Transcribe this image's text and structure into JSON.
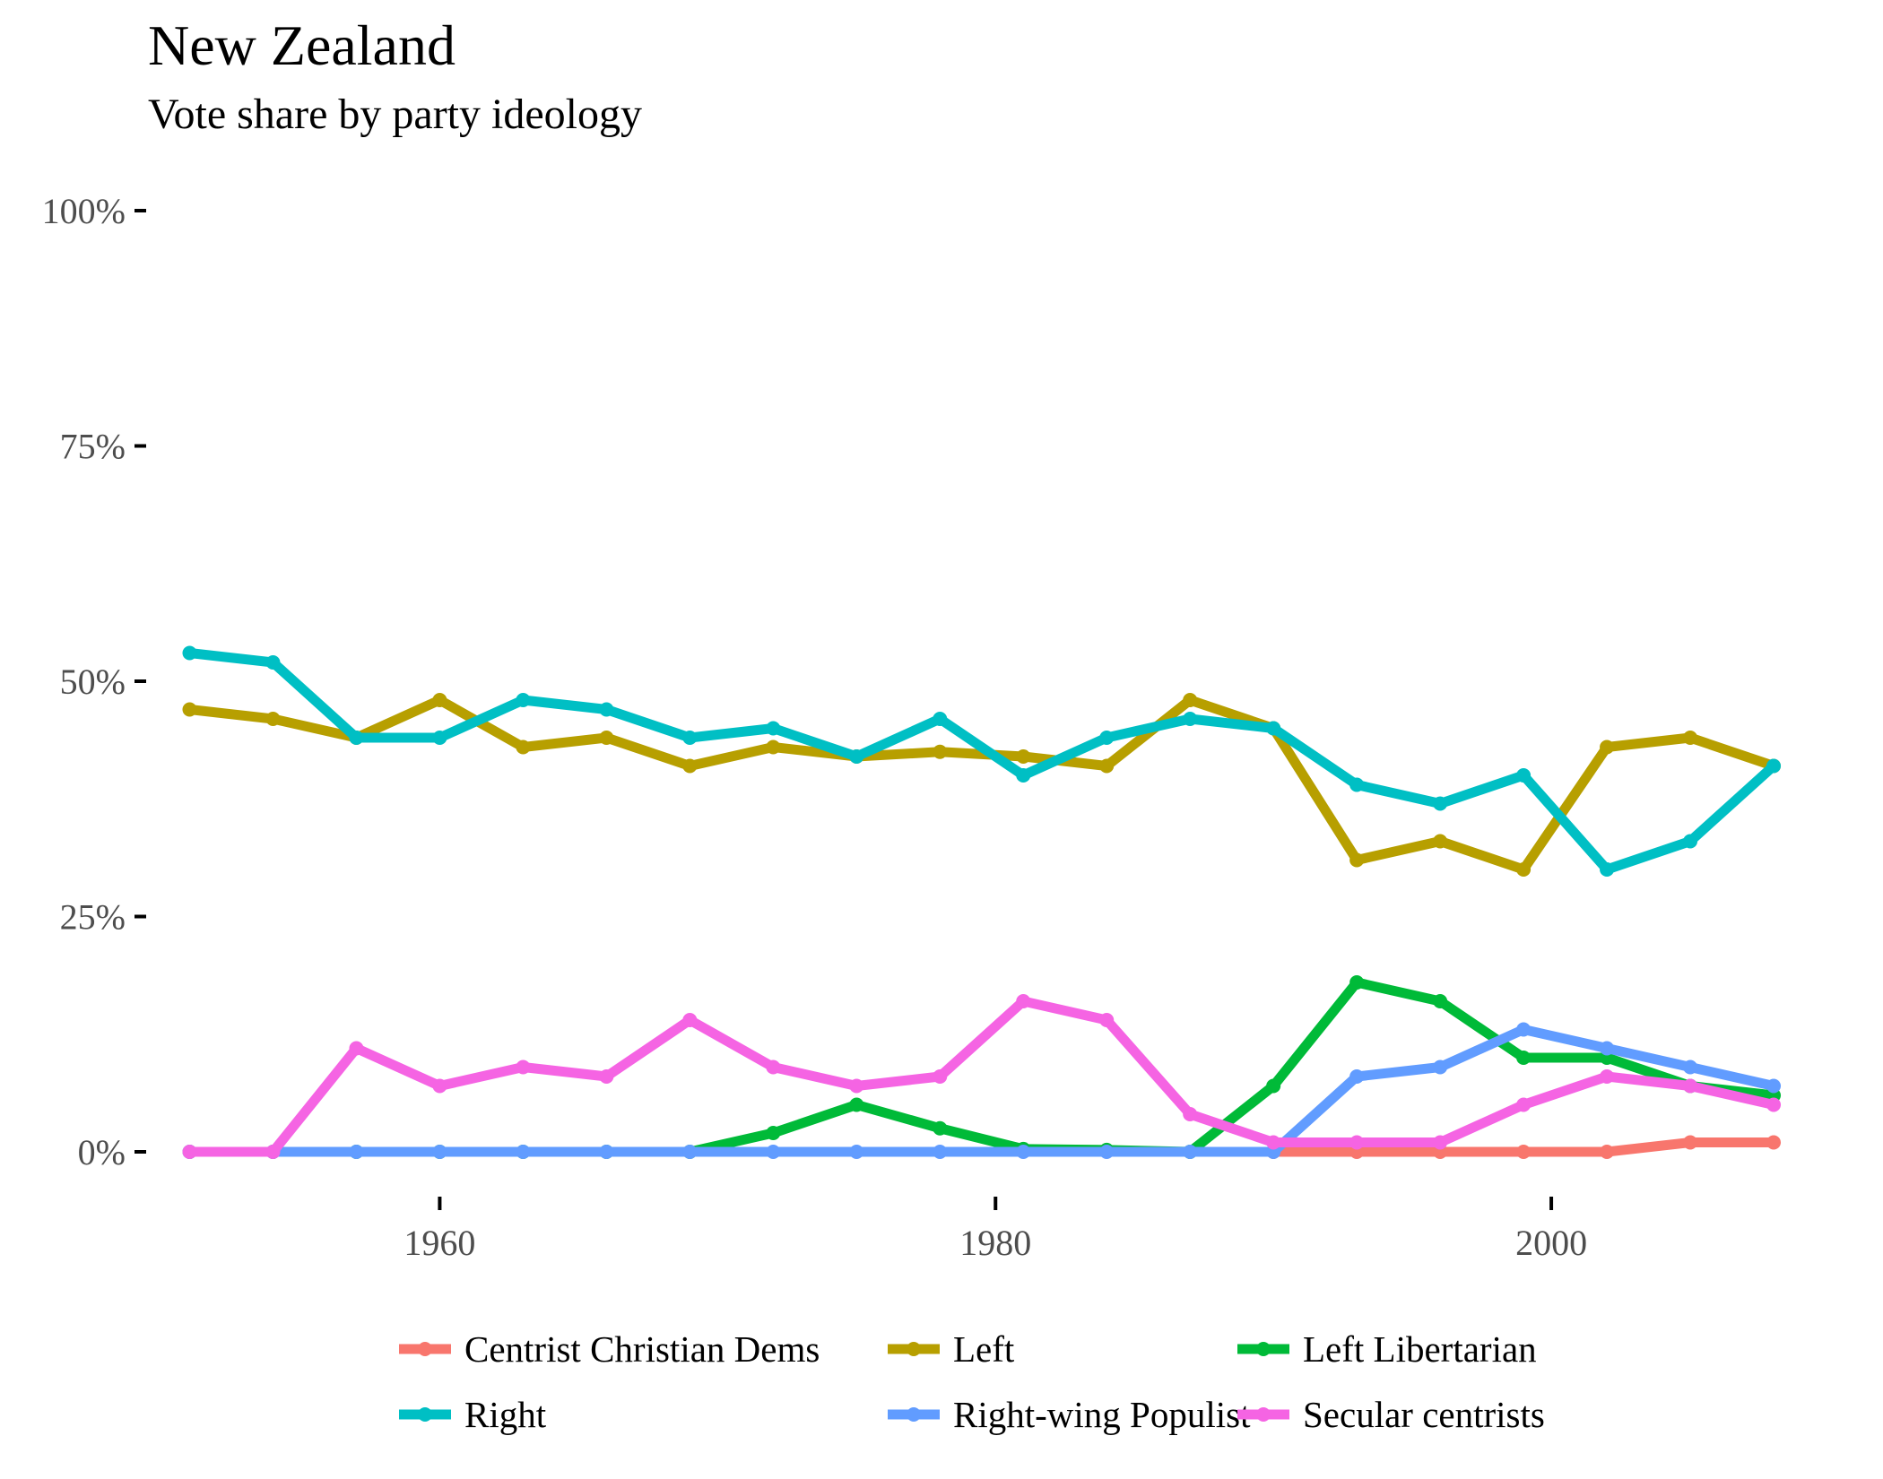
{
  "chart_data": {
    "type": "line",
    "title": "New Zealand",
    "subtitle": "Vote share by party ideology",
    "xlabel": "",
    "ylabel": "",
    "xlim": [
      1949.5,
      2010
    ],
    "ylim": [
      0,
      100
    ],
    "x_ticks": [
      1960,
      1980,
      2000
    ],
    "y_ticks": [
      0,
      25,
      50,
      75,
      100
    ],
    "y_tick_labels": [
      "0%",
      "25%",
      "50%",
      "75%",
      "100%"
    ],
    "grid": false,
    "legend_position": "bottom",
    "x": [
      1951,
      1954,
      1957,
      1960,
      1963,
      1966,
      1969,
      1972,
      1975,
      1978,
      1981,
      1984,
      1987,
      1990,
      1993,
      1996,
      1999,
      2002,
      2005,
      2008
    ],
    "series": [
      {
        "name": "Centrist Christian Dems",
        "color": "#F8766D",
        "values": [
          null,
          null,
          null,
          null,
          null,
          null,
          null,
          null,
          null,
          null,
          null,
          null,
          null,
          0,
          0,
          0,
          0,
          0,
          1,
          1
        ]
      },
      {
        "name": "Left",
        "color": "#B79F00",
        "values": [
          47,
          46,
          44,
          48,
          43,
          44,
          41,
          43,
          42,
          42.5,
          42,
          41,
          48,
          45,
          31,
          33,
          30,
          43,
          44,
          41
        ]
      },
      {
        "name": "Left Libertarian",
        "color": "#00BA38",
        "values": [
          0,
          0,
          0,
          0,
          0,
          0,
          0,
          2,
          5,
          2.5,
          0.3,
          0.2,
          0,
          7,
          18,
          16,
          10,
          10,
          7,
          6
        ]
      },
      {
        "name": "Right",
        "color": "#00BFC4",
        "values": [
          53,
          52,
          44,
          44,
          48,
          47,
          44,
          45,
          42,
          46,
          40,
          44,
          46,
          45,
          39,
          37,
          40,
          30,
          33,
          41
        ]
      },
      {
        "name": "Right-wing Populist",
        "color": "#619CFF",
        "values": [
          0,
          0,
          0,
          0,
          0,
          0,
          0,
          0,
          0,
          0,
          0,
          0,
          0,
          0,
          8,
          9,
          13,
          11,
          9,
          7
        ]
      },
      {
        "name": "Secular centrists",
        "color": "#F564E3",
        "values": [
          0,
          0,
          11,
          7,
          9,
          8,
          14,
          9,
          7,
          8,
          16,
          14,
          4,
          1,
          1,
          1,
          5,
          8,
          7,
          5
        ]
      }
    ]
  }
}
